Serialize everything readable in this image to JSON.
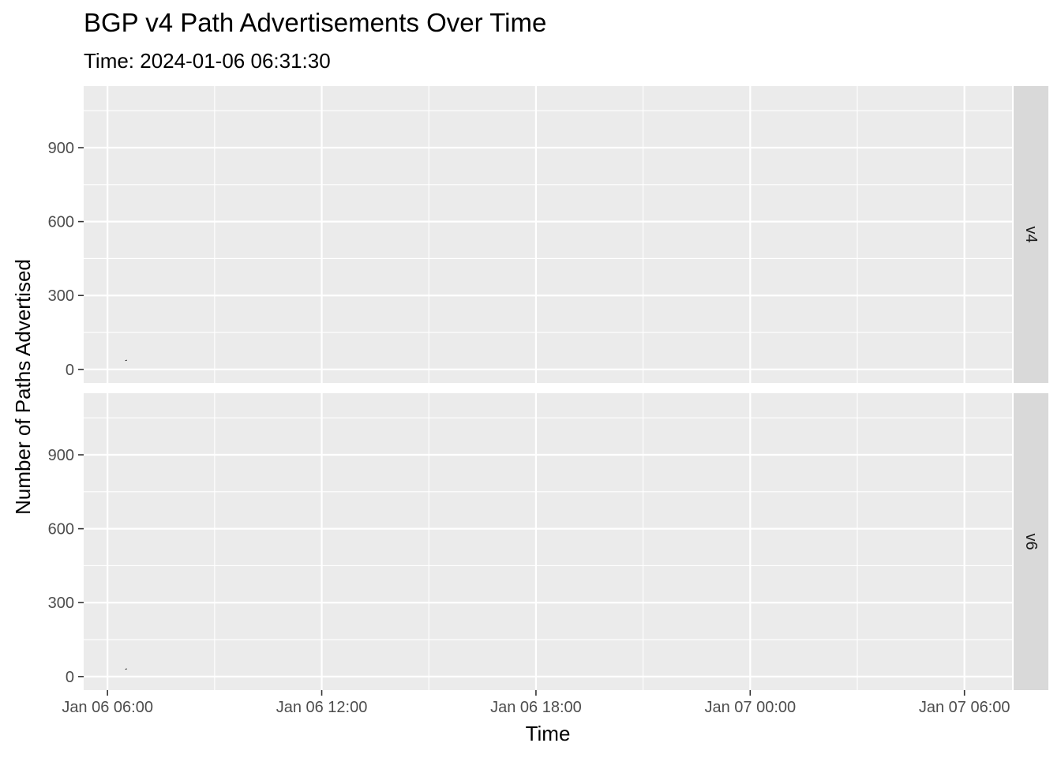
{
  "chart_data": {
    "type": "line",
    "title": "BGP v4 Path Advertisements Over Time",
    "subtitle": "Time: 2024-01-06 06:31:30",
    "xlabel": "Time",
    "ylabel": "Number of Paths Advertised",
    "x_ticks": [
      "Jan 06 06:00",
      "Jan 06 12:00",
      "Jan 06 18:00",
      "Jan 07 00:00",
      "Jan 07 06:00"
    ],
    "y_ticks": [
      "0",
      "300",
      "600",
      "900"
    ],
    "xlim": [
      "2024-01-06 05:20:00",
      "2024-01-07 07:20:00"
    ],
    "ylim": [
      -55,
      1150
    ],
    "grid": true,
    "facets": [
      {
        "label": "v4",
        "series": [
          {
            "x": [
              "2024-01-06 06:31:00",
              "2024-01-06 06:31:30"
            ],
            "y": [
              38,
              35
            ]
          }
        ]
      },
      {
        "label": "v6",
        "series": [
          {
            "x": [
              "2024-01-06 06:31:00",
              "2024-01-06 06:31:30"
            ],
            "y": [
              32,
              29
            ]
          }
        ]
      }
    ],
    "colors": {
      "panel_background": "#ebebeb",
      "grid": "#ffffff",
      "strip_background": "#d9d9d9",
      "line": "#000000",
      "tick": "#333333"
    }
  }
}
